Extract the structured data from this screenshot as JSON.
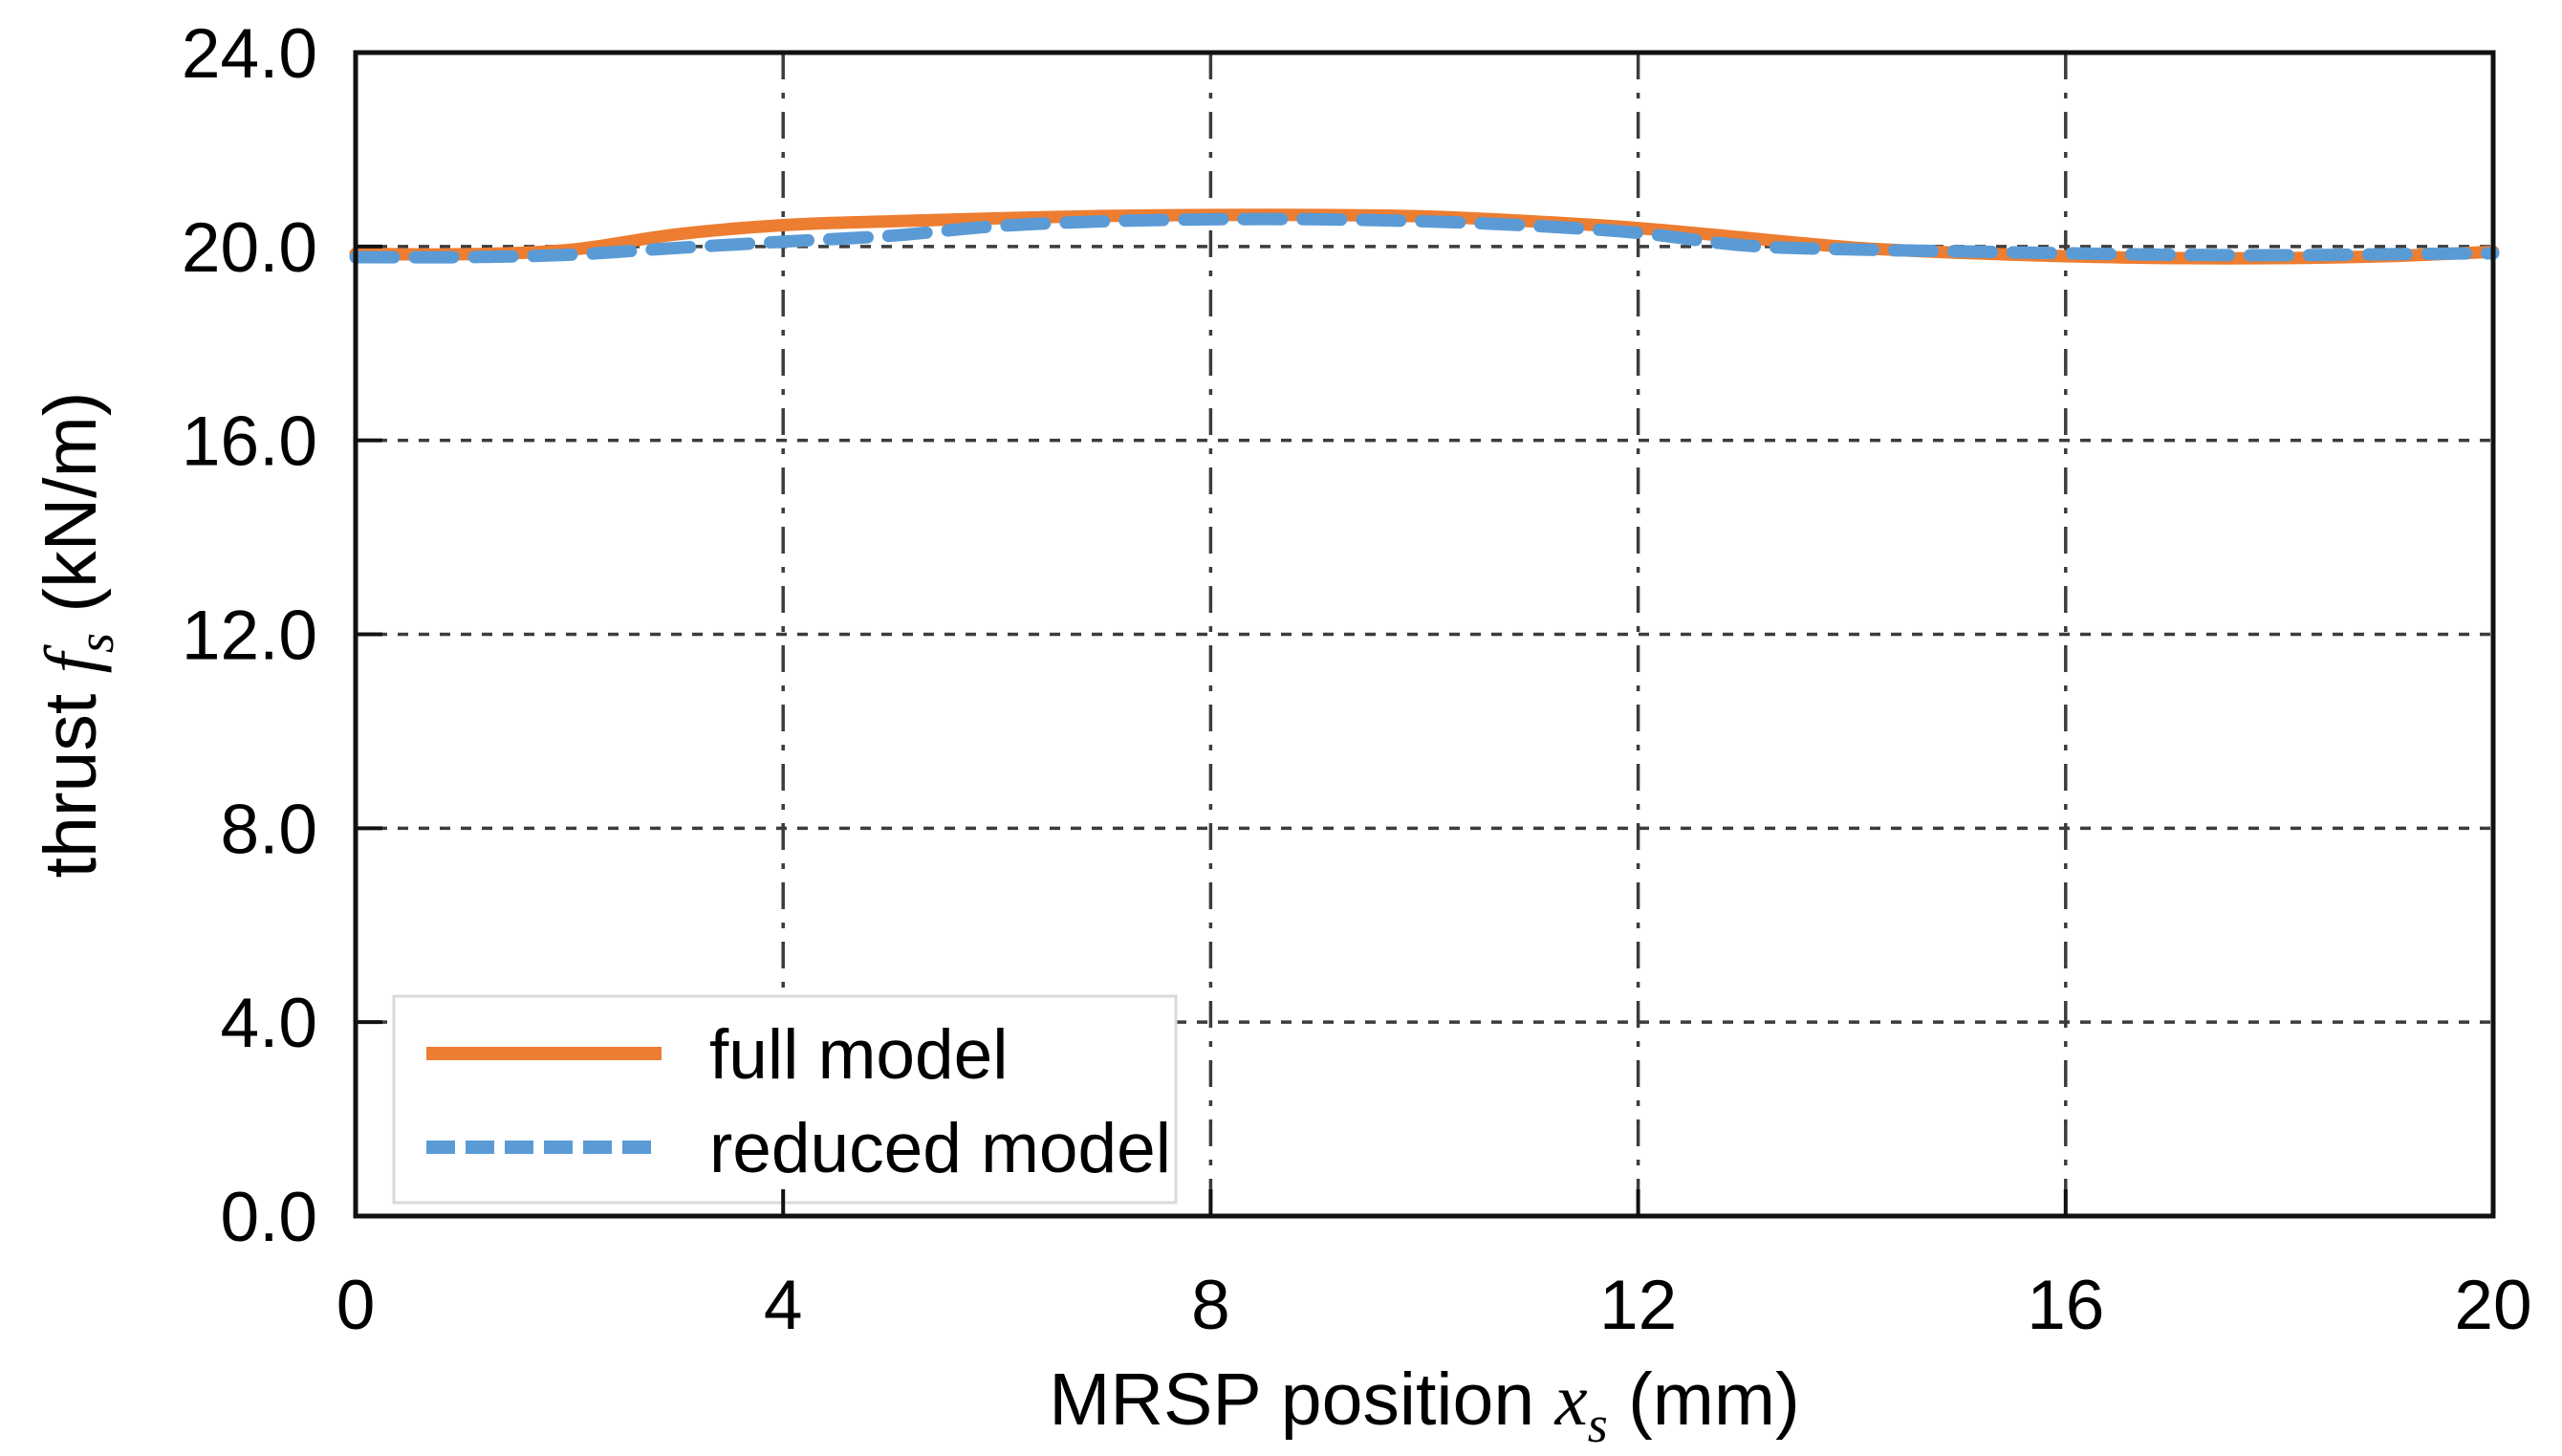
{
  "chart_data": {
    "type": "line",
    "title": "",
    "xlabel": "MRSP position x_s (mm)",
    "ylabel": "thrust f_s (kN/m)",
    "xlabel_parts": {
      "pre": "MRSP position ",
      "math": "x",
      "sub": "s",
      "post": " (mm)"
    },
    "ylabel_parts": {
      "pre": "thrust ",
      "math": "f",
      "sub": "s",
      "post": " (kN/m)"
    },
    "xlim": [
      0,
      20
    ],
    "ylim": [
      0.0,
      24.0
    ],
    "x_ticks": [
      0,
      4,
      8,
      12,
      16,
      20
    ],
    "x_tick_labels": [
      "0",
      "4",
      "8",
      "12",
      "16",
      "20"
    ],
    "y_ticks": [
      0,
      4,
      8,
      12,
      16,
      20,
      24
    ],
    "y_tick_labels": [
      "0.0",
      "4.0",
      "8.0",
      "12.0",
      "16.0",
      "20.0",
      "24.0"
    ],
    "grid": "on",
    "legend_position": "lower-left boxed",
    "x": [
      0,
      1,
      2,
      3,
      4,
      5,
      6,
      7,
      8,
      9,
      10,
      11,
      12,
      13,
      14,
      15,
      16,
      17,
      18,
      19,
      20
    ],
    "series": [
      {
        "name": "full model",
        "style": "solid",
        "color": "#ED7D31",
        "values": [
          19.85,
          19.84,
          19.93,
          20.25,
          20.44,
          20.52,
          20.58,
          20.63,
          20.65,
          20.65,
          20.62,
          20.52,
          20.38,
          20.18,
          19.98,
          19.87,
          19.8,
          19.76,
          19.76,
          19.8,
          19.89
        ]
      },
      {
        "name": "reduced model",
        "style": "dashed",
        "color": "#5B9BD5",
        "values": [
          19.78,
          19.78,
          19.83,
          19.97,
          20.1,
          20.22,
          20.42,
          20.52,
          20.56,
          20.56,
          20.52,
          20.43,
          20.28,
          20.02,
          19.94,
          19.9,
          19.86,
          19.83,
          19.82,
          19.84,
          19.86
        ]
      }
    ]
  },
  "colors": {
    "axis": "#111111",
    "gridline": "#3c3c3c",
    "legend_border": "#d9d9d9",
    "background": "#ffffff"
  }
}
